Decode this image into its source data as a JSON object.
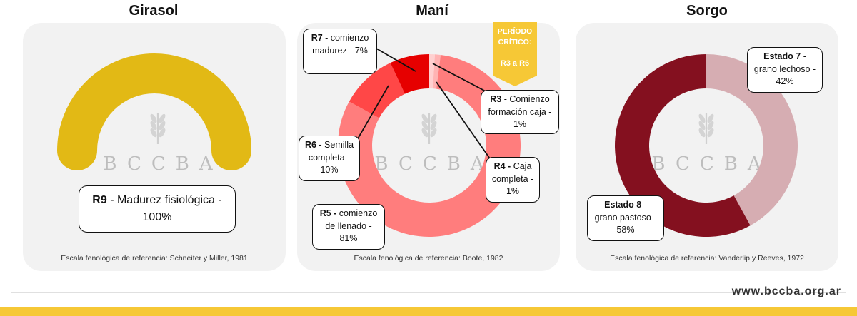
{
  "panels": [
    {
      "title": "Girasol",
      "reference": "Escala fenológica de referencia: Schneiter y Miller, 1981"
    },
    {
      "title": "Maní",
      "reference": "Escala fenológica de referencia: Boote, 1982"
    },
    {
      "title": "Sorgo",
      "reference": "Escala fenológica de referencia: Vanderlip y Reeves, 1972"
    }
  ],
  "watermark": "BCCBA",
  "critical_period": {
    "label": "PERÍODO CRÍTICO:",
    "range": "R3 a R6",
    "color": "#f6c836"
  },
  "chart_data": [
    {
      "type": "pie",
      "title": "Girasol",
      "slices": [
        {
          "code": "R9",
          "label": "Madurez fisiológica",
          "value": 100,
          "color": "#e2b915"
        }
      ]
    },
    {
      "type": "pie",
      "title": "Maní",
      "slices": [
        {
          "code": "R3",
          "label": "Comienzo formación caja",
          "value": 1,
          "color": "#ffd0d0"
        },
        {
          "code": "R4",
          "label": "Caja completa",
          "value": 1,
          "color": "#ffb3b3"
        },
        {
          "code": "R5",
          "label": "comienzo de llenado",
          "value": 81,
          "color": "#ff7d7d"
        },
        {
          "code": "R6",
          "label": "Semilla completa",
          "value": 10,
          "color": "#ff4747"
        },
        {
          "code": "R7",
          "label": "comienzo madurez",
          "value": 7,
          "color": "#e60000"
        }
      ]
    },
    {
      "type": "pie",
      "title": "Sorgo",
      "slices": [
        {
          "code": "Estado 7",
          "label": "grano lechoso",
          "value": 42,
          "color": "#d6adb2"
        },
        {
          "code": "Estado 8",
          "label": "grano pastoso",
          "value": 58,
          "color": "#84101f"
        }
      ]
    }
  ],
  "labels": {
    "girasol_r9": {
      "code": "R9",
      "text": "- Madurez fisiológica - 100%"
    },
    "mani_r7": {
      "code": "R7",
      "text": "- comienzo madurez - 7%"
    },
    "mani_r3": {
      "code": "R3",
      "text": "- Comienzo formación caja - 1%"
    },
    "mani_r6": {
      "code": "R6 -",
      "text": "Semilla completa - 10%"
    },
    "mani_r4": {
      "code": "R4 -",
      "text": "Caja completa - 1%"
    },
    "mani_r5": {
      "code": "R5 -",
      "text": "comienzo de llenado - 81%"
    },
    "sorgo_e7": {
      "code": "Estado 7",
      "text": "- grano lechoso - 42%"
    },
    "sorgo_e8": {
      "code": "Estado 8",
      "text": "- grano pastoso - 58%"
    }
  },
  "footer": {
    "website": "www.bccba.org.ar"
  }
}
